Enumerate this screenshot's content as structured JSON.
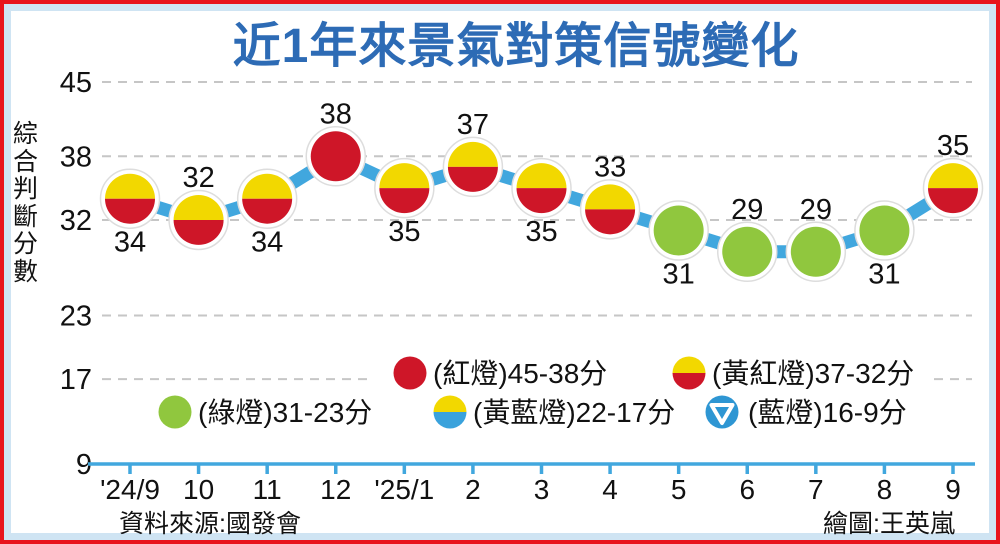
{
  "title": "近1年來景氣對策信號變化",
  "y_axis_label": "綜合判斷分數",
  "source": "資料來源:國發會",
  "credit": "繪圖:王英嵐",
  "colors": {
    "red": "#ce1628",
    "yellow": "#f2d800",
    "green": "#90c73e",
    "sky_blue": "#3aa2dc",
    "blue_dot": "#2e96d3",
    "line_blue": "#41a7de",
    "title_blue": "#2d6bb5",
    "border_red": "#e8141c",
    "frame_blue": "#cfe4f3",
    "grid_gray": "#c6c6c6"
  },
  "chart_data": {
    "type": "line",
    "title": "近1年來景氣對策信號變化",
    "xlabel": "",
    "ylabel": "綜合判斷分數",
    "x": [
      "'24/9",
      "10",
      "11",
      "12",
      "'25/1",
      "2",
      "3",
      "4",
      "5",
      "6",
      "7",
      "8",
      "9"
    ],
    "values": [
      34,
      32,
      34,
      38,
      35,
      37,
      35,
      33,
      31,
      29,
      29,
      31,
      35
    ],
    "signals": [
      "yellow-red",
      "yellow-red",
      "yellow-red",
      "red",
      "yellow-red",
      "yellow-red",
      "yellow-red",
      "yellow-red",
      "green",
      "green",
      "green",
      "green",
      "yellow-red"
    ],
    "label_positions": [
      "below",
      "above",
      "below",
      "above",
      "below",
      "above",
      "below",
      "above",
      "below",
      "above",
      "above",
      "below",
      "above"
    ],
    "yticks": [
      45,
      38,
      32,
      23,
      17,
      9
    ],
    "ylim": [
      9,
      45
    ],
    "grid": "horizontal-dashed",
    "legend_position": "inside-bottom"
  },
  "legend": [
    {
      "label": "(紅燈)45-38分",
      "type": "red"
    },
    {
      "label": "(黃紅燈)37-32分",
      "type": "yellow-red"
    },
    {
      "label": "(綠燈)31-23分",
      "type": "green"
    },
    {
      "label": "(黃藍燈)22-17分",
      "type": "yellow-blue"
    },
    {
      "label": "(藍燈)16-9分",
      "type": "blue-triangle"
    }
  ]
}
